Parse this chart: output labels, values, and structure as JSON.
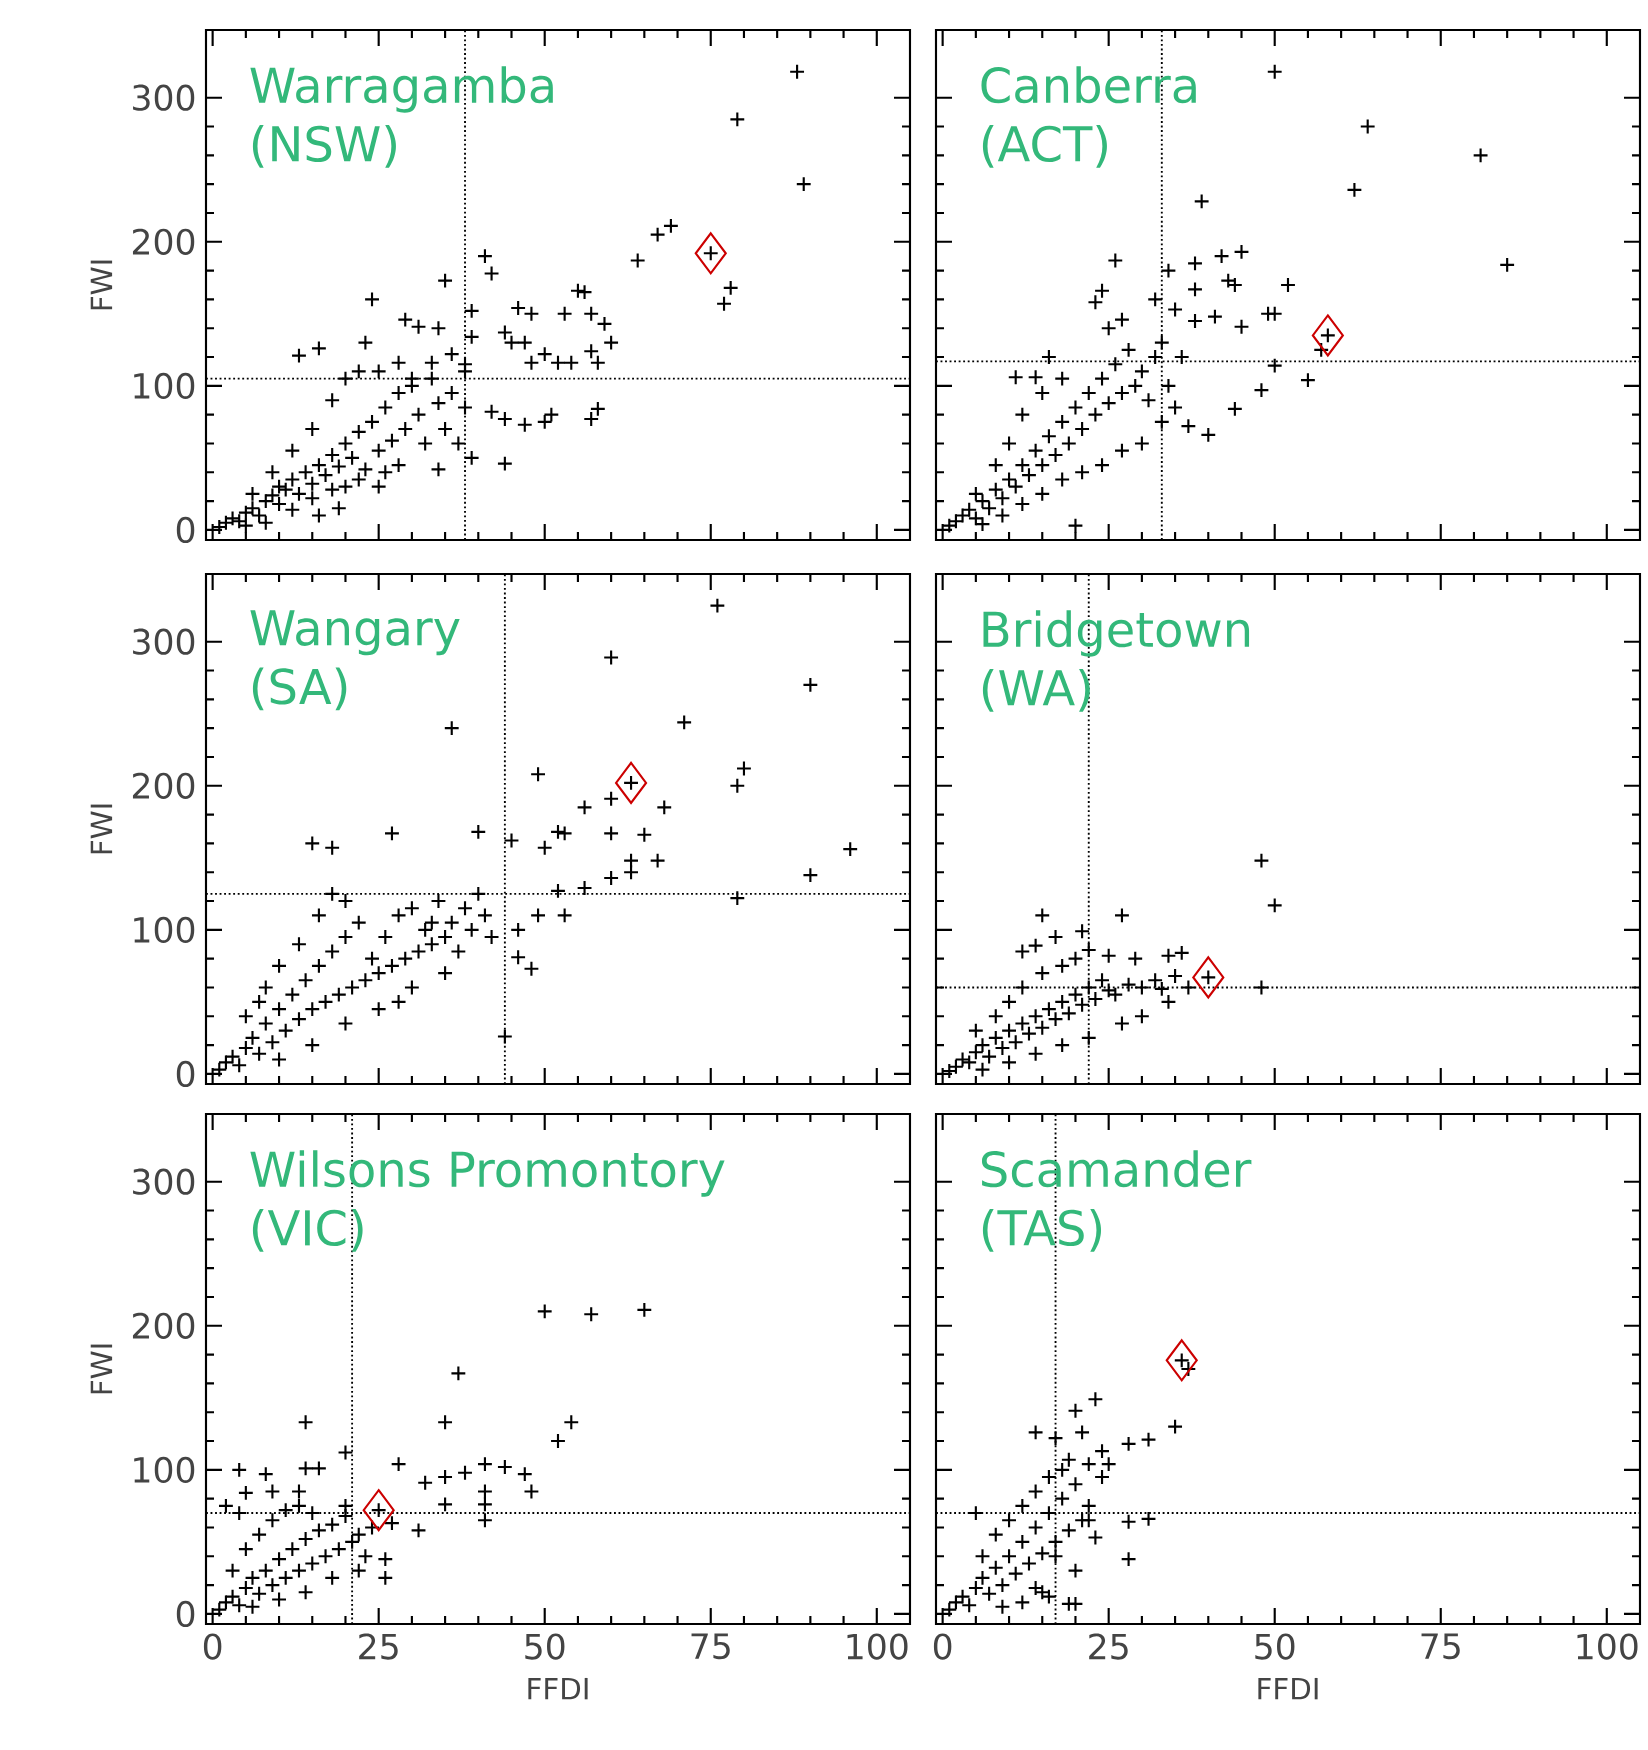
{
  "chart_data": [
    {
      "type": "scatter",
      "title": "Warragamba",
      "subtitle": "(NSW)",
      "ylabel": "FWI",
      "xlim": [
        -1,
        105
      ],
      "ylim": [
        -7,
        347
      ],
      "xticks": [
        0,
        25,
        50,
        75,
        100
      ],
      "yticks": [
        0,
        100,
        200,
        300
      ],
      "tick_labels": "y",
      "marker": "cross",
      "series": [
        {
          "color": "#000000",
          "x": [
            88,
            79,
            89,
            69,
            67,
            64,
            78,
            77,
            41,
            42,
            35,
            24,
            55,
            56,
            46,
            48,
            53,
            57,
            59,
            39,
            29,
            31,
            34,
            44,
            39,
            45,
            47,
            60,
            23,
            13,
            16,
            57,
            58,
            54,
            38,
            48,
            50,
            52,
            33,
            36,
            28,
            42,
            44,
            47,
            50,
            51,
            57,
            58,
            44,
            39,
            34,
            75,
            1,
            2,
            3,
            4,
            5,
            6,
            7,
            8,
            9,
            10,
            10,
            11,
            12,
            13,
            14,
            15,
            16,
            17,
            18,
            19,
            20,
            20,
            21,
            22,
            23,
            24,
            25,
            26,
            27,
            28,
            28,
            29,
            30,
            31,
            32,
            33,
            34,
            35,
            36,
            37,
            38,
            38,
            5,
            8,
            12,
            15,
            18,
            22,
            25,
            6,
            9,
            12,
            15,
            18,
            20,
            25,
            30,
            22,
            26,
            19,
            16
          ],
          "values": [
            318,
            285,
            240,
            211,
            205,
            187,
            168,
            157,
            190,
            178,
            173,
            160,
            166,
            165,
            154,
            150,
            150,
            150,
            143,
            152,
            146,
            141,
            140,
            137,
            134,
            130,
            130,
            130,
            130,
            121,
            126,
            124,
            116,
            116,
            115,
            116,
            122,
            116,
            116,
            122,
            116,
            82,
            77,
            73,
            75,
            80,
            77,
            84,
            46,
            50,
            42,
            192,
            2,
            5,
            8,
            6,
            12,
            15,
            10,
            20,
            24,
            18,
            30,
            28,
            35,
            25,
            40,
            32,
            45,
            38,
            52,
            44,
            60,
            30,
            50,
            68,
            42,
            75,
            55,
            85,
            62,
            95,
            45,
            70,
            100,
            80,
            60,
            105,
            88,
            70,
            95,
            60,
            85,
            110,
            3,
            5,
            14,
            22,
            28,
            35,
            30,
            25,
            40,
            55,
            70,
            90,
            105,
            110,
            105,
            110,
            40,
            15,
            10
          ]
        },
        {
          "color": "#cc0000",
          "marker": "diamond",
          "x": [
            75
          ],
          "values": [
            192
          ]
        }
      ],
      "ref_lines": [
        {
          "axis": "x",
          "value": 38,
          "line_style": "dotted"
        },
        {
          "axis": "y",
          "value": 105,
          "line_style": "dotted"
        }
      ]
    },
    {
      "type": "scatter",
      "title": "Canberra",
      "subtitle": "(ACT)",
      "xlim": [
        -1,
        105
      ],
      "ylim": [
        -7,
        347
      ],
      "xticks": [
        0,
        25,
        50,
        75,
        100
      ],
      "yticks": [
        0,
        100,
        200,
        300
      ],
      "tick_labels": false,
      "marker": "cross",
      "series": [
        {
          "color": "#000000",
          "x": [
            50,
            64,
            81,
            62,
            85,
            39,
            26,
            34,
            42,
            45,
            38,
            43,
            44,
            52,
            38,
            24,
            23,
            32,
            35,
            49,
            50,
            41,
            38,
            45,
            27,
            25,
            57,
            55,
            50,
            48,
            44,
            40,
            37,
            16,
            11,
            14,
            20,
            58,
            1,
            2,
            3,
            4,
            5,
            6,
            7,
            8,
            9,
            10,
            11,
            12,
            13,
            14,
            15,
            16,
            17,
            18,
            19,
            20,
            21,
            22,
            23,
            24,
            25,
            26,
            27,
            28,
            29,
            30,
            31,
            32,
            33,
            34,
            35,
            36,
            5,
            8,
            10,
            12,
            15,
            18,
            6,
            9,
            12,
            15,
            18,
            21,
            24,
            27,
            30,
            33
          ],
          "values": [
            318,
            280,
            260,
            236,
            184,
            228,
            187,
            180,
            190,
            193,
            185,
            173,
            170,
            170,
            167,
            166,
            158,
            160,
            153,
            150,
            150,
            148,
            145,
            141,
            146,
            140,
            125,
            104,
            114,
            97,
            84,
            66,
            72,
            120,
            106,
            106,
            3,
            135,
            3,
            6,
            10,
            14,
            8,
            20,
            15,
            28,
            22,
            35,
            30,
            45,
            38,
            55,
            45,
            65,
            52,
            75,
            60,
            85,
            70,
            95,
            80,
            105,
            88,
            115,
            95,
            125,
            100,
            110,
            90,
            120,
            130,
            100,
            85,
            120,
            25,
            45,
            60,
            80,
            95,
            105,
            4,
            10,
            18,
            25,
            35,
            40,
            45,
            55,
            60,
            75
          ]
        },
        {
          "color": "#cc0000",
          "marker": "diamond",
          "x": [
            58
          ],
          "values": [
            135
          ]
        }
      ],
      "ref_lines": [
        {
          "axis": "x",
          "value": 33,
          "line_style": "dotted"
        },
        {
          "axis": "y",
          "value": 117,
          "line_style": "dotted"
        }
      ]
    },
    {
      "type": "scatter",
      "title": "Wangary",
      "subtitle": "(SA)",
      "ylabel": "FWI",
      "xlim": [
        -1,
        105
      ],
      "ylim": [
        -7,
        347
      ],
      "xticks": [
        0,
        25,
        50,
        75,
        100
      ],
      "yticks": [
        0,
        100,
        200,
        300
      ],
      "tick_labels": "y",
      "marker": "cross",
      "series": [
        {
          "color": "#000000",
          "x": [
            76,
            60,
            90,
            71,
            36,
            49,
            80,
            79,
            68,
            56,
            60,
            96,
            90,
            79,
            27,
            40,
            60,
            65,
            52,
            53,
            15,
            18,
            45,
            50,
            63,
            67,
            63,
            60,
            56,
            52,
            53,
            49,
            46,
            48,
            46,
            44,
            63,
            1,
            2,
            3,
            4,
            5,
            6,
            7,
            8,
            9,
            10,
            11,
            12,
            13,
            14,
            15,
            16,
            17,
            18,
            19,
            20,
            21,
            22,
            23,
            24,
            25,
            26,
            27,
            28,
            29,
            30,
            31,
            32,
            33,
            34,
            35,
            36,
            37,
            38,
            39,
            40,
            41,
            42,
            8,
            10,
            13,
            16,
            18,
            20,
            5,
            7,
            25,
            30,
            35,
            20,
            15,
            10,
            28,
            33
          ],
          "values": [
            325,
            289,
            270,
            244,
            240,
            208,
            212,
            200,
            185,
            185,
            191,
            156,
            138,
            122,
            167,
            168,
            167,
            166,
            168,
            167,
            160,
            157,
            162,
            157,
            148,
            148,
            140,
            136,
            129,
            127,
            110,
            110,
            100,
            73,
            81,
            26,
            202,
            3,
            8,
            12,
            6,
            18,
            25,
            14,
            35,
            22,
            45,
            30,
            55,
            38,
            65,
            45,
            75,
            50,
            85,
            55,
            95,
            60,
            105,
            65,
            80,
            70,
            95,
            75,
            110,
            80,
            115,
            85,
            100,
            90,
            120,
            95,
            105,
            85,
            115,
            100,
            125,
            110,
            95,
            60,
            75,
            90,
            110,
            125,
            120,
            40,
            50,
            45,
            60,
            70,
            35,
            20,
            10,
            50,
            105
          ]
        },
        {
          "color": "#cc0000",
          "marker": "diamond",
          "x": [
            63
          ],
          "values": [
            202
          ]
        }
      ],
      "ref_lines": [
        {
          "axis": "x",
          "value": 44,
          "line_style": "dotted"
        },
        {
          "axis": "y",
          "value": 125,
          "line_style": "dotted"
        }
      ]
    },
    {
      "type": "scatter",
      "title": "Bridgetown",
      "subtitle": "(WA)",
      "xlim": [
        -1,
        105
      ],
      "ylim": [
        -7,
        347
      ],
      "xticks": [
        0,
        25,
        50,
        75,
        100
      ],
      "yticks": [
        0,
        100,
        200,
        300
      ],
      "tick_labels": false,
      "marker": "cross",
      "series": [
        {
          "color": "#000000",
          "x": [
            48,
            50,
            48,
            40,
            36,
            34,
            27,
            15,
            21,
            22,
            14,
            35,
            37,
            34,
            30,
            27,
            33,
            1,
            2,
            3,
            4,
            5,
            6,
            7,
            8,
            9,
            10,
            11,
            12,
            13,
            14,
            15,
            16,
            17,
            18,
            19,
            20,
            21,
            22,
            23,
            24,
            25,
            26,
            28,
            30,
            32,
            5,
            8,
            10,
            12,
            15,
            18,
            20,
            6,
            10,
            14,
            18,
            22,
            17,
            12,
            25,
            29
          ],
          "values": [
            148,
            117,
            60,
            67,
            84,
            82,
            110,
            110,
            99,
            86,
            89,
            68,
            60,
            50,
            40,
            35,
            59,
            2,
            5,
            10,
            8,
            15,
            20,
            12,
            25,
            18,
            30,
            22,
            35,
            28,
            40,
            32,
            45,
            38,
            50,
            42,
            55,
            48,
            60,
            52,
            65,
            58,
            55,
            62,
            60,
            65,
            30,
            40,
            50,
            60,
            70,
            75,
            80,
            3,
            8,
            14,
            20,
            25,
            95,
            85,
            82,
            80
          ]
        },
        {
          "color": "#cc0000",
          "marker": "diamond",
          "x": [
            40
          ],
          "values": [
            67
          ]
        }
      ],
      "ref_lines": [
        {
          "axis": "x",
          "value": 22,
          "line_style": "dotted"
        },
        {
          "axis": "y",
          "value": 60,
          "line_style": "dotted"
        }
      ]
    },
    {
      "type": "scatter",
      "title": "Wilsons Promontory",
      "subtitle": "(VIC)",
      "xlabel": "FFDI",
      "ylabel": "FWI",
      "xlim": [
        -1,
        105
      ],
      "ylim": [
        -7,
        347
      ],
      "xticks": [
        0,
        25,
        50,
        75,
        100
      ],
      "yticks": [
        0,
        100,
        200,
        300
      ],
      "marker": "cross",
      "series": [
        {
          "color": "#000000",
          "x": [
            50,
            57,
            65,
            37,
            35,
            54,
            52,
            14,
            20,
            41,
            44,
            47,
            48,
            41,
            38,
            35,
            32,
            28,
            41,
            41,
            35,
            31,
            26,
            27,
            4,
            8,
            14,
            16,
            5,
            9,
            13,
            25,
            1,
            2,
            3,
            4,
            5,
            6,
            7,
            8,
            9,
            10,
            11,
            12,
            13,
            14,
            15,
            16,
            17,
            18,
            19,
            20,
            21,
            22,
            23,
            24,
            3,
            5,
            7,
            9,
            11,
            13,
            15,
            6,
            10,
            14,
            18,
            22,
            26,
            20,
            2,
            4
          ],
          "values": [
            210,
            208,
            211,
            167,
            133,
            133,
            120,
            133,
            112,
            104,
            102,
            97,
            85,
            85,
            98,
            95,
            91,
            104,
            76,
            65,
            76,
            58,
            38,
            63,
            100,
            97,
            101,
            101,
            84,
            85,
            85,
            72,
            3,
            8,
            12,
            6,
            18,
            25,
            14,
            30,
            20,
            38,
            25,
            45,
            30,
            52,
            35,
            58,
            40,
            62,
            45,
            68,
            50,
            55,
            40,
            60,
            30,
            45,
            55,
            65,
            72,
            75,
            70,
            5,
            10,
            15,
            25,
            30,
            25,
            75,
            75,
            70
          ]
        },
        {
          "color": "#cc0000",
          "marker": "diamond",
          "x": [
            25
          ],
          "values": [
            72
          ]
        }
      ],
      "ref_lines": [
        {
          "axis": "x",
          "value": 21,
          "line_style": "dotted"
        },
        {
          "axis": "y",
          "value": 70,
          "line_style": "dotted"
        }
      ]
    },
    {
      "type": "scatter",
      "title": "Scamander",
      "subtitle": "(TAS)",
      "xlabel": "FFDI",
      "xlim": [
        -1,
        105
      ],
      "ylim": [
        -7,
        347
      ],
      "xticks": [
        0,
        25,
        50,
        75,
        100
      ],
      "yticks": [
        0,
        100,
        200,
        300
      ],
      "tick_labels": "x",
      "marker": "cross",
      "series": [
        {
          "color": "#000000",
          "x": [
            23,
            20,
            14,
            21,
            35,
            31,
            28,
            24,
            25,
            22,
            19,
            17,
            24,
            31,
            28,
            22,
            23,
            28,
            19,
            20,
            16,
            14,
            36,
            37,
            1,
            2,
            3,
            4,
            5,
            6,
            7,
            8,
            9,
            10,
            11,
            12,
            13,
            14,
            15,
            16,
            17,
            18,
            19,
            20,
            21,
            22,
            6,
            8,
            10,
            12,
            14,
            16,
            18,
            5,
            15,
            12,
            20,
            17,
            9
          ],
          "values": [
            149,
            141,
            126,
            126,
            130,
            121,
            118,
            113,
            104,
            104,
            107,
            122,
            95,
            66,
            64,
            65,
            53,
            38,
            7,
            7,
            12,
            18,
            176,
            170,
            3,
            8,
            12,
            6,
            18,
            25,
            14,
            32,
            20,
            40,
            28,
            50,
            35,
            60,
            42,
            70,
            50,
            80,
            58,
            90,
            65,
            75,
            40,
            55,
            65,
            75,
            85,
            95,
            100,
            70,
            15,
            8,
            30,
            40,
            5
          ]
        },
        {
          "color": "#cc0000",
          "marker": "diamond",
          "x": [
            36
          ],
          "values": [
            176
          ]
        }
      ],
      "ref_lines": [
        {
          "axis": "x",
          "value": 17,
          "line_style": "dotted"
        },
        {
          "axis": "y",
          "value": 70,
          "line_style": "dotted"
        }
      ]
    }
  ]
}
